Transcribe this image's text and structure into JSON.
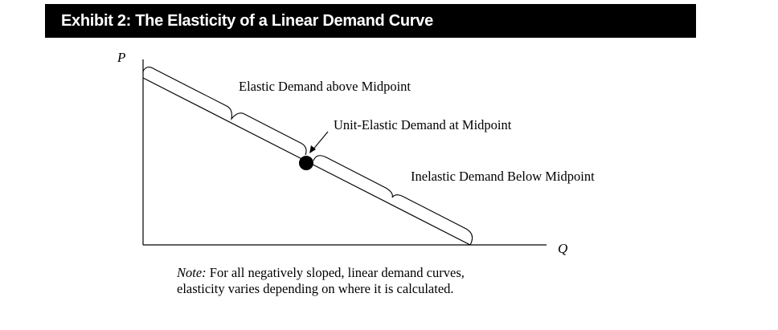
{
  "header": {
    "title": "Exhibit 2: The Elasticity of a Linear Demand Curve"
  },
  "diagram": {
    "y_axis_label": "P",
    "x_axis_label": "Q",
    "labels": {
      "elastic": "Elastic Demand above Midpoint",
      "unit_elastic": "Unit-Elastic Demand at Midpoint",
      "inelastic": "Inelastic Demand Below Midpoint"
    }
  },
  "note": {
    "lead": "Note:",
    "line1": "For all negatively sloped, linear demand curves,",
    "line2": "elasticity varies depending on where it is calculated."
  },
  "colors": {
    "title_background": "#000000",
    "title_text": "#ffffff",
    "lines": "#000000"
  }
}
